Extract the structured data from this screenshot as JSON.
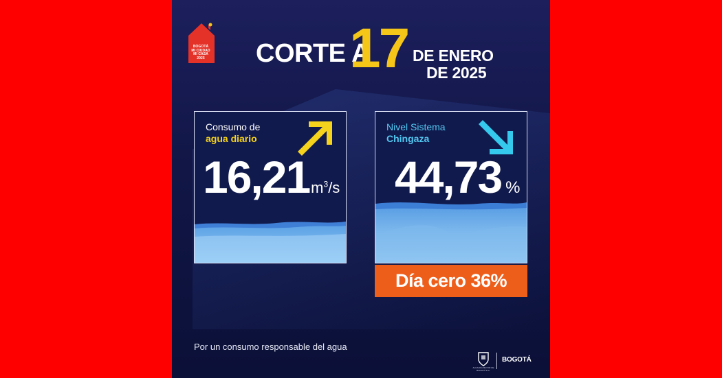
{
  "logo": {
    "lines": [
      "BOGOTÁ",
      "MI CIUDAD",
      "MI CASA",
      "2025"
    ],
    "color": "#e53228"
  },
  "header": {
    "prefix": "CORTE A",
    "day": "17",
    "month_line": "DE ENERO",
    "year_line": "DE 2025"
  },
  "consumo": {
    "label_line1": "Consumo de",
    "label_line2": "agua diario",
    "value": "16,21",
    "unit_base": "m",
    "unit_sup": "3",
    "unit_tail": "/s",
    "trend": "up",
    "arrow_icon": "arrow-up-right-icon",
    "accent": "#f5d31c"
  },
  "nivel": {
    "label_line1": "Nivel Sistema",
    "label_line2": "Chingaza",
    "value": "44,73",
    "unit": "%",
    "trend": "down",
    "arrow_icon": "arrow-down-right-icon",
    "accent": "#35c9ee"
  },
  "dia_cero": {
    "text": "Día cero 36%",
    "color": "#ee5e1b"
  },
  "tagline": "Por un consumo responsable del agua",
  "footer": {
    "shield_icon": "bogota-shield-icon",
    "shield_caption": "ALCALDÍA MAYOR DE BOGOTÁ D.C.",
    "brand": "BOGOTÁ"
  }
}
